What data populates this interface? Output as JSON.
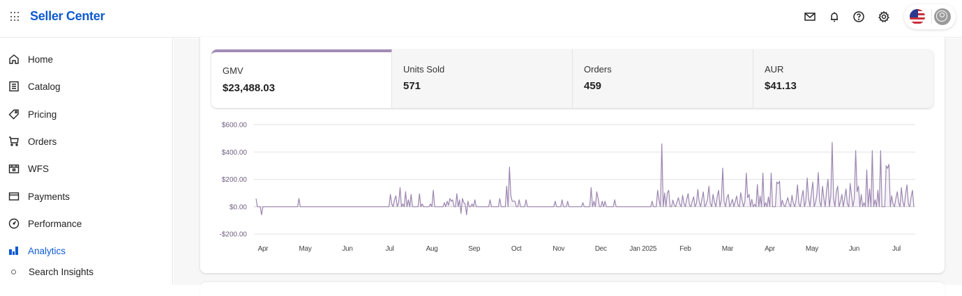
{
  "app": {
    "brand": "Seller Center"
  },
  "topbar": {
    "icons": [
      "grid-menu-icon",
      "mail-icon",
      "bell-icon",
      "help-icon",
      "gear-icon",
      "us-flag-icon",
      "user-avatar-icon"
    ]
  },
  "sidebar": {
    "items": [
      {
        "label": "Home",
        "icon": "home-icon",
        "active": false
      },
      {
        "label": "Catalog",
        "icon": "catalog-icon",
        "active": false
      },
      {
        "label": "Pricing",
        "icon": "price-tag-icon",
        "active": false
      },
      {
        "label": "Orders",
        "icon": "cart-icon",
        "active": false
      },
      {
        "label": "WFS",
        "icon": "warehouse-box-icon",
        "active": false
      },
      {
        "label": "Payments",
        "icon": "card-icon",
        "active": false
      },
      {
        "label": "Performance",
        "icon": "gauge-icon",
        "active": false
      },
      {
        "label": "Analytics",
        "icon": "bar-chart-icon",
        "active": true
      }
    ],
    "sub_items": [
      {
        "label": "Search Insights"
      }
    ]
  },
  "metrics": {
    "tabs": [
      {
        "label": "GMV",
        "value": "$23,488.03",
        "active": true
      },
      {
        "label": "Units Sold",
        "value": "571",
        "active": false
      },
      {
        "label": "Orders",
        "value": "459",
        "active": false
      },
      {
        "label": "AUR",
        "value": "$41.13",
        "active": false
      }
    ]
  },
  "colors": {
    "brand": "#0e5ad0",
    "accent": "#a38bb5",
    "line": "#9c86b0"
  },
  "chart_data": {
    "type": "line",
    "title": "",
    "xlabel": "",
    "ylabel": "GMV",
    "ylim": [
      -200,
      600
    ],
    "yticks": [
      -200,
      0,
      200,
      400,
      600
    ],
    "ytick_labels": [
      "-$200.00",
      "$0.00",
      "$200.00",
      "$400.00",
      "$600.00"
    ],
    "xtick_labels": [
      "Apr",
      "May",
      "Jun",
      "Jul",
      "Aug",
      "Sep",
      "Oct",
      "Nov",
      "Dec",
      "Jan 2025",
      "Feb",
      "Mar",
      "Apr",
      "May",
      "Jun",
      "Jul"
    ],
    "grid": true,
    "legend": "none",
    "series": [
      {
        "name": "GMV",
        "x_start": "2024-03-28",
        "x_step": "1 day",
        "values": [
          60,
          0,
          0,
          0,
          -60,
          0,
          0,
          0,
          0,
          0,
          0,
          0,
          0,
          0,
          0,
          0,
          0,
          0,
          0,
          0,
          0,
          0,
          0,
          0,
          0,
          0,
          0,
          0,
          0,
          0,
          0,
          60,
          0,
          0,
          0,
          0,
          0,
          0,
          0,
          0,
          0,
          0,
          0,
          0,
          0,
          0,
          0,
          0,
          0,
          0,
          0,
          0,
          0,
          0,
          0,
          0,
          0,
          0,
          0,
          0,
          0,
          0,
          0,
          0,
          0,
          0,
          0,
          0,
          0,
          0,
          0,
          0,
          0,
          0,
          0,
          0,
          0,
          0,
          0,
          0,
          0,
          0,
          0,
          0,
          0,
          0,
          0,
          0,
          0,
          0,
          0,
          0,
          0,
          0,
          0,
          0,
          0,
          90,
          20,
          0,
          50,
          80,
          0,
          30,
          140,
          0,
          20,
          0,
          110,
          0,
          50,
          0,
          90,
          0,
          0,
          0,
          0,
          0,
          95,
          0,
          20,
          0,
          0,
          0,
          0,
          0,
          20,
          0,
          120,
          0,
          0,
          0,
          0,
          0,
          0,
          0,
          30,
          0,
          40,
          10,
          60,
          40,
          50,
          0,
          0,
          95,
          0,
          50,
          -50,
          60,
          30,
          20,
          -60,
          40,
          0,
          0,
          20,
          0,
          50,
          0,
          0,
          0,
          0,
          0,
          0,
          0,
          0,
          0,
          0,
          50,
          0,
          0,
          0,
          0,
          0,
          0,
          60,
          0,
          0,
          0,
          0,
          150,
          0,
          290,
          80,
          40,
          40,
          40,
          0,
          0,
          50,
          0,
          0,
          0,
          0,
          50,
          0,
          0,
          0,
          0,
          0,
          0,
          0,
          0,
          0,
          0,
          0,
          0,
          0,
          0,
          0,
          0,
          0,
          0,
          0,
          0,
          40,
          0,
          0,
          0,
          0,
          50,
          0,
          0,
          0,
          40,
          0,
          0,
          0,
          0,
          0,
          0,
          0,
          0,
          0,
          0,
          30,
          0,
          0,
          0,
          0,
          0,
          140,
          0,
          40,
          0,
          110,
          60,
          0,
          0,
          40,
          0,
          40,
          0,
          0,
          0,
          0,
          0,
          0,
          50,
          0,
          0,
          0,
          0,
          0,
          0,
          0,
          0,
          0,
          0,
          0,
          0,
          0,
          0,
          0,
          0,
          0,
          0,
          0,
          0,
          0,
          0,
          0,
          0,
          0,
          0,
          40,
          0,
          0,
          0,
          120,
          50,
          0,
          460,
          0,
          100,
          0,
          100,
          120,
          0,
          20,
          0,
          0,
          80,
          40,
          0,
          100,
          0,
          20,
          0,
          -30,
          0,
          0,
          20,
          0,
          0,
          0,
          0,
          0,
          0,
          20,
          30,
          0,
          50,
          0,
          0,
          0,
          0,
          0,
          30,
          0,
          0,
          20,
          0,
          0,
          -50,
          0,
          0,
          0,
          0,
          0,
          290,
          0,
          100,
          0,
          0,
          50,
          0,
          0,
          0,
          30,
          0,
          0,
          90,
          0,
          40,
          0,
          20,
          0,
          0,
          0,
          0,
          0,
          40,
          0,
          0,
          0,
          0,
          0,
          0,
          0,
          0,
          0,
          0,
          0,
          140,
          0,
          0,
          50,
          0,
          0,
          140,
          0,
          80,
          0,
          0,
          50,
          0,
          70,
          0,
          0,
          50,
          0,
          0,
          0,
          0,
          0,
          160,
          0,
          0,
          90,
          0,
          0,
          0,
          70,
          0,
          0,
          0,
          0,
          0,
          0,
          0,
          0,
          0,
          0,
          0,
          0,
          0,
          0,
          0,
          0,
          0,
          0,
          0,
          0,
          0,
          0,
          0,
          100,
          0,
          0,
          0,
          30,
          0,
          130,
          0,
          0,
          0,
          0,
          0,
          0,
          0,
          30,
          0,
          0,
          0,
          0,
          0,
          0,
          0,
          0,
          0,
          0,
          0,
          0,
          0,
          0,
          0,
          0,
          0,
          0,
          0,
          0,
          0,
          0,
          0,
          0,
          0,
          0,
          0,
          0,
          0,
          0,
          0,
          0,
          0,
          0,
          0,
          0,
          0,
          0,
          0,
          0,
          0,
          0,
          0,
          0,
          0,
          0,
          0,
          0,
          0,
          0,
          0,
          0,
          0,
          0,
          0,
          0,
          0,
          0,
          0,
          0,
          0,
          0,
          0,
          0,
          0,
          0,
          0,
          0,
          0,
          0,
          0,
          0,
          0,
          0,
          0,
          0,
          0,
          0,
          0,
          0,
          0,
          0,
          0,
          0,
          0,
          0,
          0,
          0,
          0,
          0,
          0,
          0,
          0,
          0,
          0,
          0,
          0,
          0,
          0,
          0,
          0,
          0,
          0,
          0,
          0
        ]
      }
    ]
  }
}
